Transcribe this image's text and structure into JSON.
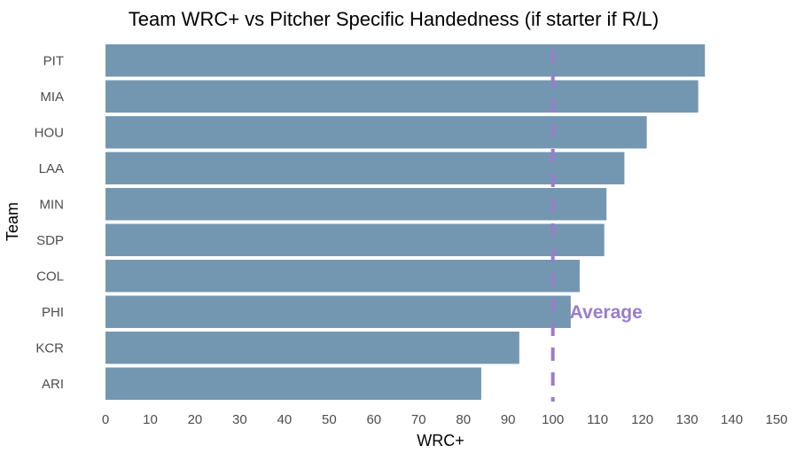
{
  "chart_data": {
    "type": "bar",
    "orientation": "horizontal",
    "title": "Team WRC+ vs Pitcher Specific Handedness (if starter if R/L)",
    "xlabel": "WRC+",
    "ylabel": "Team",
    "categories": [
      "PIT",
      "MIA",
      "HOU",
      "LAA",
      "MIN",
      "SDP",
      "COL",
      "PHI",
      "KCR",
      "ARI"
    ],
    "values": [
      134,
      132.5,
      121,
      116,
      112,
      111.5,
      106,
      104,
      92.5,
      84
    ],
    "xlim": [
      0,
      150
    ],
    "xticks": [
      "0",
      "10",
      "20",
      "30",
      "40",
      "50",
      "60",
      "70",
      "80",
      "90",
      "100",
      "110",
      "120",
      "130",
      "140",
      "150"
    ],
    "grid": false,
    "bar_color": "#7497b1",
    "reference_line": {
      "value": 100,
      "label": "Average",
      "color": "#9a7dc9",
      "style": "dashed"
    }
  }
}
